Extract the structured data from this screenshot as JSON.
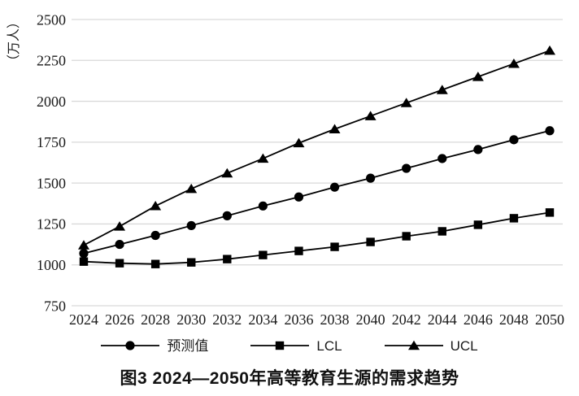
{
  "figure_caption": "图3  2024—2050年高等教育生源的需求趋势",
  "chart_data": {
    "type": "line",
    "title": "",
    "xlabel": "",
    "ylabel": "（万人）",
    "ylim": [
      750,
      2500
    ],
    "yticks": [
      750,
      1000,
      1250,
      1500,
      1750,
      2000,
      2250,
      2500
    ],
    "grid": true,
    "legend_position": "bottom",
    "x": [
      2024,
      2026,
      2028,
      2030,
      2032,
      2034,
      2036,
      2038,
      2040,
      2042,
      2044,
      2046,
      2048,
      2050
    ],
    "series": [
      {
        "key": "forecast",
        "name": "预测值",
        "marker": "circle",
        "color": "#000000",
        "values": [
          1070,
          1125,
          1180,
          1240,
          1300,
          1360,
          1415,
          1475,
          1530,
          1590,
          1650,
          1705,
          1765,
          1820
        ]
      },
      {
        "key": "lcl",
        "name": "LCL",
        "marker": "square",
        "color": "#000000",
        "values": [
          1020,
          1010,
          1005,
          1015,
          1035,
          1060,
          1085,
          1110,
          1140,
          1175,
          1205,
          1245,
          1285,
          1320
        ]
      },
      {
        "key": "ucl",
        "name": "UCL",
        "marker": "triangle",
        "color": "#000000",
        "values": [
          1120,
          1235,
          1360,
          1465,
          1560,
          1650,
          1745,
          1830,
          1910,
          1990,
          2070,
          2150,
          2230,
          2310
        ]
      }
    ],
    "colors": {
      "gridline": "#d9d9d9",
      "text": "#1a1a1a",
      "series": "#000000"
    }
  }
}
